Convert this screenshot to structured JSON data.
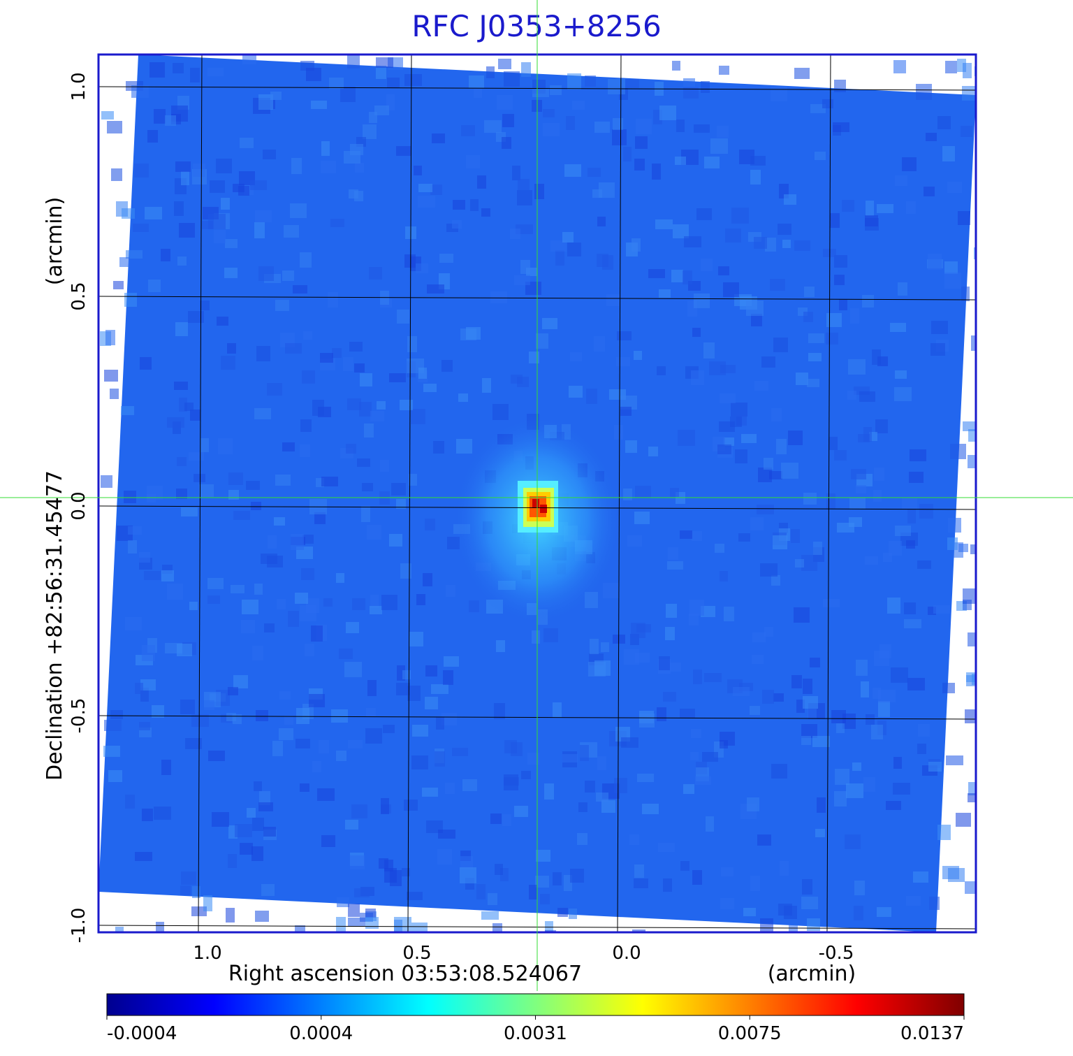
{
  "chart_data": {
    "type": "heatmap",
    "title": "RFC J0353+8256",
    "xlabel": "Right ascension  03:53:08.524067",
    "xunit": "(arcmin)",
    "ylabel": "Declination  +82:56:31.45477",
    "yunit": "(arcmin)",
    "x_ticks": [
      {
        "value": 1.0,
        "label": "1.0"
      },
      {
        "value": 0.5,
        "label": "0.5"
      },
      {
        "value": 0.0,
        "label": "0.0"
      },
      {
        "value": -0.5,
        "label": "-0.5"
      }
    ],
    "y_ticks": [
      {
        "value": 1.0,
        "label": "1.0"
      },
      {
        "value": 0.5,
        "label": "0.5"
      },
      {
        "value": 0.0,
        "label": "0.0"
      },
      {
        "value": -0.5,
        "label": "-0.5"
      },
      {
        "value": -1.0,
        "label": "-1.0"
      }
    ],
    "x_axis": "reversed",
    "grid": true,
    "crosshair": {
      "x": 0.2,
      "y": 0.02
    },
    "peak": {
      "x": 0.2,
      "y": 0.0,
      "value": 0.0137
    },
    "colorbar": {
      "ticks": [
        {
          "value": -0.0004,
          "label": "-0.0004"
        },
        {
          "value": 0.0004,
          "label": "0.0004"
        },
        {
          "value": 0.0031,
          "label": "0.0031"
        },
        {
          "value": 0.0075,
          "label": "0.0075"
        },
        {
          "value": 0.0137,
          "label": "0.0137"
        }
      ],
      "colormap": "jet"
    },
    "colors": {
      "frame": "#1a1acc",
      "title": "#1a1acc",
      "grid": "#000000",
      "crosshair": "#33dd33",
      "background_field": "#2266ee"
    }
  }
}
